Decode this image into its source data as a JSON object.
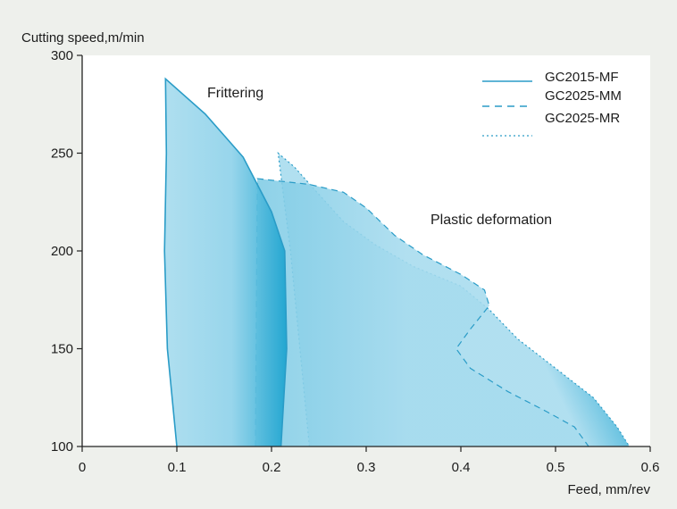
{
  "chart_data": {
    "type": "area",
    "title": "",
    "ylabel": "Cutting speed,m/min",
    "xlabel": "Feed, mm/rev",
    "xlim": [
      0,
      0.6
    ],
    "ylim": [
      100,
      300
    ],
    "xticks": [
      "0",
      "0.1",
      "0.2",
      "0.3",
      "0.4",
      "0.5",
      "0.6"
    ],
    "yticks": [
      "100",
      "150",
      "200",
      "250",
      "300"
    ],
    "legend_position": "top-right",
    "annotations": {
      "frittering": "Frittering",
      "plastic": "Plastic deformation"
    },
    "colors": {
      "fill": "#9fd9ec",
      "fill_dark": "#1aa3cf",
      "line": "#2a9cc7",
      "plot_bg": "#ffffff",
      "page_bg": "#eef0ec"
    },
    "series": [
      {
        "name": "GC2015-MF",
        "line_style": "solid",
        "boundary": [
          [
            0.1,
            100
          ],
          [
            0.09,
            150
          ],
          [
            0.087,
            200
          ],
          [
            0.089,
            250
          ],
          [
            0.088,
            288
          ],
          [
            0.13,
            270
          ],
          [
            0.17,
            248
          ],
          [
            0.2,
            220
          ],
          [
            0.214,
            200
          ],
          [
            0.216,
            150
          ],
          [
            0.21,
            100
          ]
        ]
      },
      {
        "name": "GC2025-MM",
        "line_style": "dashed",
        "boundary": [
          [
            0.183,
            100
          ],
          [
            0.185,
            237
          ],
          [
            0.24,
            234
          ],
          [
            0.276,
            230
          ],
          [
            0.3,
            222
          ],
          [
            0.33,
            208
          ],
          [
            0.36,
            198
          ],
          [
            0.4,
            188
          ],
          [
            0.425,
            180
          ],
          [
            0.43,
            172
          ],
          [
            0.41,
            160
          ],
          [
            0.395,
            150
          ],
          [
            0.41,
            140
          ],
          [
            0.45,
            128
          ],
          [
            0.49,
            118
          ],
          [
            0.52,
            110
          ],
          [
            0.535,
            100
          ]
        ]
      },
      {
        "name": "GC2025-MR",
        "line_style": "dotted",
        "boundary": [
          [
            0.24,
            100
          ],
          [
            0.23,
            150
          ],
          [
            0.22,
            200
          ],
          [
            0.207,
            250
          ],
          [
            0.224,
            243
          ],
          [
            0.248,
            230
          ],
          [
            0.276,
            215
          ],
          [
            0.31,
            203
          ],
          [
            0.35,
            192
          ],
          [
            0.4,
            182
          ],
          [
            0.43,
            170
          ],
          [
            0.46,
            155
          ],
          [
            0.5,
            140
          ],
          [
            0.54,
            125
          ],
          [
            0.565,
            110
          ],
          [
            0.578,
            100
          ]
        ]
      }
    ]
  }
}
